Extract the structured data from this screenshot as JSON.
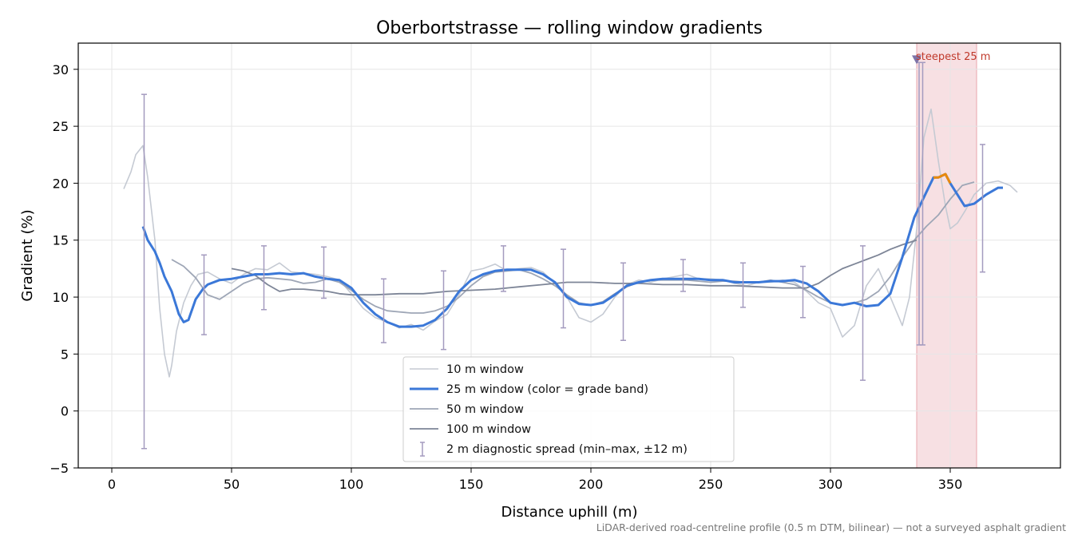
{
  "chart_data": {
    "type": "line",
    "title": "Oberbortstrasse — rolling window gradients",
    "xlabel": "Distance uphill (m)",
    "ylabel": "Gradient (%)",
    "xlim": [
      -14,
      396
    ],
    "ylim": [
      -5,
      32.3
    ],
    "xticks": [
      0,
      50,
      100,
      150,
      200,
      250,
      300,
      350
    ],
    "yticks": [
      -5,
      0,
      5,
      10,
      15,
      20,
      25,
      30
    ],
    "grid": true,
    "legend_position": "bottom-center",
    "footnote": "LiDAR-derived road-centreline profile (0.5 m DTM, bilinear) — not a surveyed asphalt gradient",
    "highlight": {
      "label": "steepest 25 m",
      "x_start": 336,
      "x_end": 361,
      "marker_x": 336,
      "marker_y": 30.8,
      "color": "#e8a6ae"
    },
    "series": [
      {
        "name": "10 m window",
        "color": "#c5cad3",
        "width": 1.6,
        "x": [
          5,
          8,
          10,
          13,
          15,
          18,
          20,
          22,
          24,
          25,
          27,
          30,
          33,
          36,
          40,
          45,
          50,
          55,
          60,
          65,
          70,
          75,
          80,
          85,
          90,
          95,
          100,
          105,
          110,
          115,
          120,
          125,
          130,
          135,
          140,
          145,
          150,
          155,
          160,
          165,
          170,
          175,
          180,
          185,
          190,
          195,
          200,
          205,
          210,
          215,
          220,
          225,
          230,
          235,
          240,
          245,
          250,
          255,
          260,
          265,
          270,
          275,
          280,
          285,
          290,
          295,
          300,
          305,
          310,
          315,
          320,
          325,
          330,
          333,
          336,
          339,
          342,
          345,
          348,
          350,
          353,
          356,
          360,
          365,
          370,
          375,
          378
        ],
        "y": [
          19.5,
          21,
          22.5,
          23.3,
          20.5,
          15,
          9,
          5,
          3,
          4,
          7,
          9.5,
          11,
          12,
          12.2,
          11.6,
          11.2,
          12,
          12.5,
          12.4,
          13,
          12.2,
          12.1,
          12,
          11.8,
          11.5,
          10.3,
          9,
          8.2,
          7.8,
          7.3,
          7.6,
          7.1,
          7.9,
          8.5,
          10.2,
          12.3,
          12.5,
          12.9,
          12.3,
          12.5,
          12.6,
          12.2,
          11.2,
          10,
          8.2,
          7.8,
          8.5,
          10,
          11.1,
          11.5,
          11.3,
          11.6,
          11.8,
          12,
          11.6,
          11.6,
          11.5,
          11.2,
          11,
          11.3,
          11.3,
          11.5,
          11.3,
          10.5,
          9.5,
          9,
          6.5,
          7.5,
          11,
          12.5,
          10,
          7.5,
          10,
          16,
          24,
          26.5,
          22,
          18,
          16,
          16.5,
          17.5,
          19,
          20,
          20.2,
          19.8,
          19.2
        ]
      },
      {
        "name": "50 m window",
        "color": "#9ea6b6",
        "width": 1.8,
        "x": [
          25,
          30,
          35,
          40,
          45,
          50,
          55,
          60,
          65,
          70,
          75,
          80,
          85,
          90,
          95,
          100,
          105,
          110,
          115,
          120,
          125,
          130,
          135,
          140,
          145,
          150,
          155,
          160,
          165,
          170,
          175,
          180,
          185,
          190,
          195,
          200,
          205,
          210,
          215,
          220,
          225,
          230,
          235,
          240,
          245,
          250,
          255,
          260,
          265,
          270,
          275,
          280,
          285,
          290,
          295,
          300,
          305,
          310,
          315,
          320,
          325,
          330,
          335,
          340,
          345,
          350,
          355,
          360
        ],
        "y": [
          13.3,
          12.7,
          11.7,
          10.2,
          9.8,
          10.5,
          11.2,
          11.6,
          11.7,
          11.6,
          11.5,
          11.2,
          11.3,
          11.6,
          11.3,
          10.6,
          9.8,
          9.2,
          8.8,
          8.7,
          8.6,
          8.6,
          8.8,
          9.2,
          10,
          11,
          11.8,
          12.2,
          12.3,
          12.4,
          12.1,
          11.6,
          11,
          10.2,
          9.5,
          9.3,
          9.6,
          10.3,
          10.9,
          11.3,
          11.5,
          11.5,
          11.5,
          11.5,
          11.4,
          11.3,
          11.4,
          11.4,
          11.3,
          11.3,
          11.5,
          11.3,
          11.1,
          10.6,
          10,
          9.5,
          9.3,
          9.5,
          9.8,
          10.5,
          11.8,
          13.5,
          15,
          16.2,
          17.2,
          18.6,
          19.8,
          20.1
        ]
      },
      {
        "name": "100 m window",
        "color": "#7d8597",
        "width": 1.8,
        "x": [
          50,
          55,
          60,
          65,
          70,
          75,
          80,
          85,
          90,
          95,
          100,
          110,
          120,
          130,
          140,
          150,
          160,
          170,
          180,
          190,
          200,
          210,
          220,
          230,
          240,
          250,
          260,
          270,
          280,
          290,
          295,
          300,
          305,
          310,
          315,
          320,
          325,
          330,
          336
        ],
        "y": [
          12.5,
          12.3,
          11.9,
          11.1,
          10.5,
          10.7,
          10.7,
          10.6,
          10.5,
          10.3,
          10.2,
          10.2,
          10.3,
          10.3,
          10.5,
          10.6,
          10.7,
          10.9,
          11.1,
          11.3,
          11.3,
          11.2,
          11.2,
          11.1,
          11.1,
          11.0,
          11.0,
          10.9,
          10.8,
          10.8,
          11.2,
          11.9,
          12.5,
          12.9,
          13.3,
          13.7,
          14.2,
          14.6,
          15
        ]
      }
    ],
    "main_series": {
      "name": "25 m window (color = grade band)",
      "color": "#3b78d8",
      "steep_color": "#e8890c",
      "width": 3,
      "x": [
        13,
        15,
        18,
        20,
        22,
        25,
        28,
        30,
        32,
        35,
        38,
        40,
        45,
        50,
        55,
        60,
        65,
        70,
        75,
        80,
        85,
        90,
        95,
        100,
        105,
        110,
        115,
        120,
        125,
        130,
        135,
        140,
        145,
        150,
        155,
        160,
        165,
        170,
        175,
        180,
        185,
        190,
        195,
        200,
        205,
        210,
        215,
        220,
        225,
        230,
        235,
        240,
        245,
        250,
        255,
        260,
        265,
        270,
        275,
        280,
        285,
        290,
        295,
        300,
        305,
        310,
        315,
        320,
        325,
        330,
        335,
        340,
        343,
        345,
        348,
        350,
        353,
        356,
        360,
        365,
        370,
        372
      ],
      "y": [
        16.2,
        15,
        14,
        13,
        11.8,
        10.5,
        8.5,
        7.8,
        8,
        9.8,
        10.7,
        11.1,
        11.5,
        11.6,
        11.8,
        12.0,
        12.0,
        12.1,
        12.0,
        12.1,
        11.8,
        11.6,
        11.5,
        10.8,
        9.5,
        8.5,
        7.8,
        7.4,
        7.4,
        7.5,
        8.0,
        9.0,
        10.5,
        11.5,
        12.0,
        12.3,
        12.4,
        12.4,
        12.4,
        12.0,
        11.3,
        10.0,
        9.4,
        9.3,
        9.5,
        10.2,
        11.0,
        11.3,
        11.5,
        11.6,
        11.6,
        11.6,
        11.6,
        11.5,
        11.5,
        11.3,
        11.3,
        11.3,
        11.4,
        11.4,
        11.5,
        11.2,
        10.5,
        9.5,
        9.3,
        9.5,
        9.2,
        9.3,
        10.3,
        13.5,
        17.0,
        19.2,
        20.5,
        20.5,
        20.8,
        20,
        19,
        18,
        18.2,
        19,
        19.6,
        19.6
      ],
      "steep_x_range": [
        342,
        350
      ]
    },
    "errorbars": {
      "name": "2 m diagnostic spread (min–max, ±12 m)",
      "color": "#a49bbf",
      "points": [
        {
          "x": 13.5,
          "ymin": -3.3,
          "ymax": 27.8
        },
        {
          "x": 38.5,
          "ymin": 6.7,
          "ymax": 13.7
        },
        {
          "x": 63.5,
          "ymin": 8.9,
          "ymax": 14.5
        },
        {
          "x": 88.5,
          "ymin": 9.9,
          "ymax": 14.4
        },
        {
          "x": 113.5,
          "ymin": 6.0,
          "ymax": 11.6
        },
        {
          "x": 138.5,
          "ymin": 5.4,
          "ymax": 12.3
        },
        {
          "x": 163.5,
          "ymin": 10.5,
          "ymax": 14.5
        },
        {
          "x": 188.5,
          "ymin": 7.3,
          "ymax": 14.2
        },
        {
          "x": 213.5,
          "ymin": 6.2,
          "ymax": 13.0
        },
        {
          "x": 238.5,
          "ymin": 10.5,
          "ymax": 13.3
        },
        {
          "x": 263.5,
          "ymin": 9.1,
          "ymax": 13.0
        },
        {
          "x": 288.5,
          "ymin": 8.2,
          "ymax": 12.7
        },
        {
          "x": 313.5,
          "ymin": 2.7,
          "ymax": 14.5
        },
        {
          "x": 337.0,
          "ymin": 5.8,
          "ymax": 30.6
        },
        {
          "x": 338.5,
          "ymin": 5.8,
          "ymax": 30.6
        },
        {
          "x": 363.5,
          "ymin": 12.2,
          "ymax": 23.4
        }
      ]
    }
  }
}
